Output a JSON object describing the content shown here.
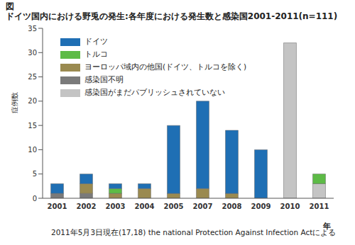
{
  "chart_data": {
    "type": "bar",
    "stacked": true,
    "figure_label": "図",
    "title": "ドイツ国内における野兎の発生:各年度における発生数と感染国2001-2011(n=111)",
    "x_label": "年",
    "y_label": "症例数",
    "footnote": "2011年5月3日現在(17,18) the national Protection Against Infection Actによる",
    "categories": [
      "2001",
      "2002",
      "2003",
      "2004",
      "2005",
      "2007",
      "2008",
      "2009",
      "2010",
      "2011"
    ],
    "ylim": [
      0,
      35
    ],
    "yticks": [
      0,
      5,
      10,
      15,
      20,
      25,
      30,
      35
    ],
    "grid": false,
    "legend": "upper left",
    "series": [
      {
        "name": "ドイツ",
        "color": "#1f6fb4",
        "values": [
          2,
          2,
          1,
          1,
          14,
          18,
          13,
          10,
          0,
          0
        ]
      },
      {
        "name": "トルコ",
        "color": "#5dbb46",
        "values": [
          0,
          0,
          1,
          0,
          0,
          0,
          0,
          0,
          0,
          2
        ]
      },
      {
        "name": "ヨーロッパ域内の他国(ドイツ、トルコを除く)",
        "color": "#9a8a50",
        "values": [
          0,
          2,
          1,
          2,
          1,
          2,
          1,
          0,
          0,
          0
        ]
      },
      {
        "name": "感染国不明",
        "color": "#7a7a7a",
        "values": [
          1,
          1,
          0,
          0,
          0,
          0,
          0,
          0,
          0,
          0
        ]
      },
      {
        "name": "感染国がまだパブリッシュされていない",
        "color": "#c4c4c4",
        "values": [
          0,
          0,
          0,
          0,
          0,
          0,
          0,
          0,
          32,
          3
        ]
      }
    ]
  }
}
